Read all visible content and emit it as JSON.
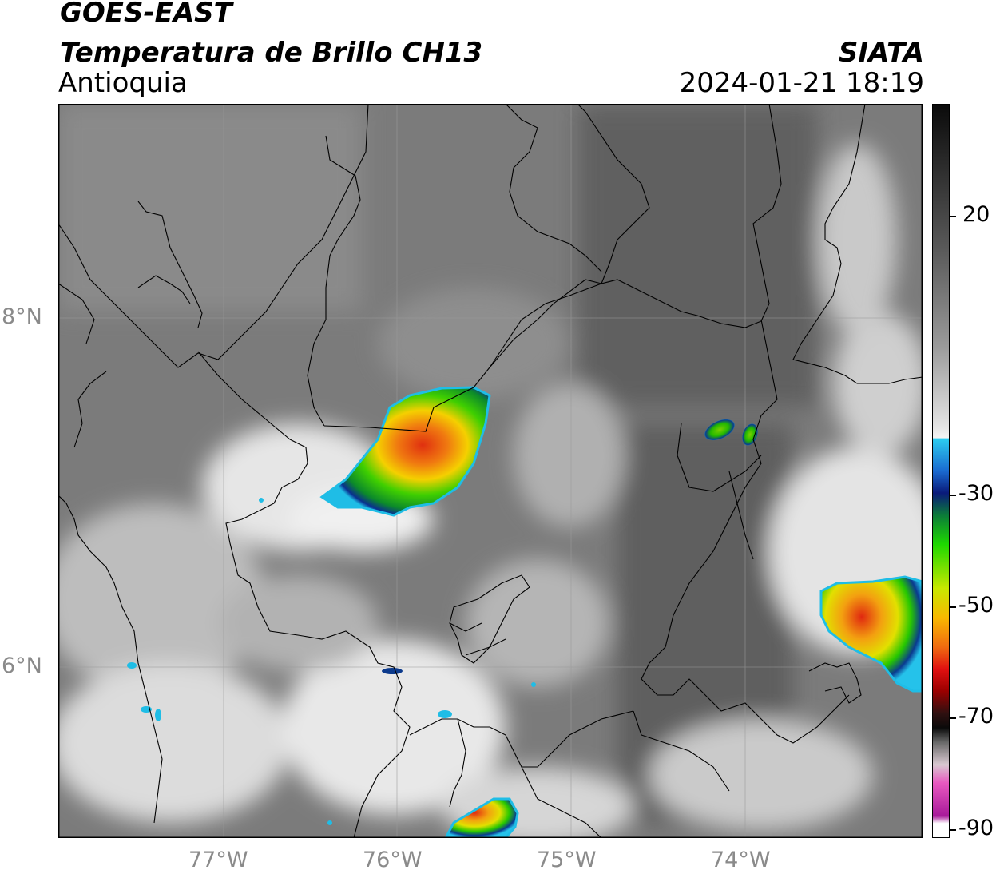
{
  "header": {
    "line1": "GOES-EAST",
    "line2": "Temperatura de Brillo CH13",
    "line3": "Antioquia",
    "brand": "SIATA",
    "datetime": "2024-01-21 18:19"
  },
  "axes": {
    "x_ticks": [
      "77°W",
      "76°W",
      "75°W",
      "74°W"
    ],
    "y_ticks": [
      "8°N",
      "6°N"
    ]
  },
  "colorbar": {
    "ticks": [
      "20",
      "-30",
      "-50",
      "-70",
      "-90"
    ],
    "range": [
      -90,
      30
    ]
  }
}
